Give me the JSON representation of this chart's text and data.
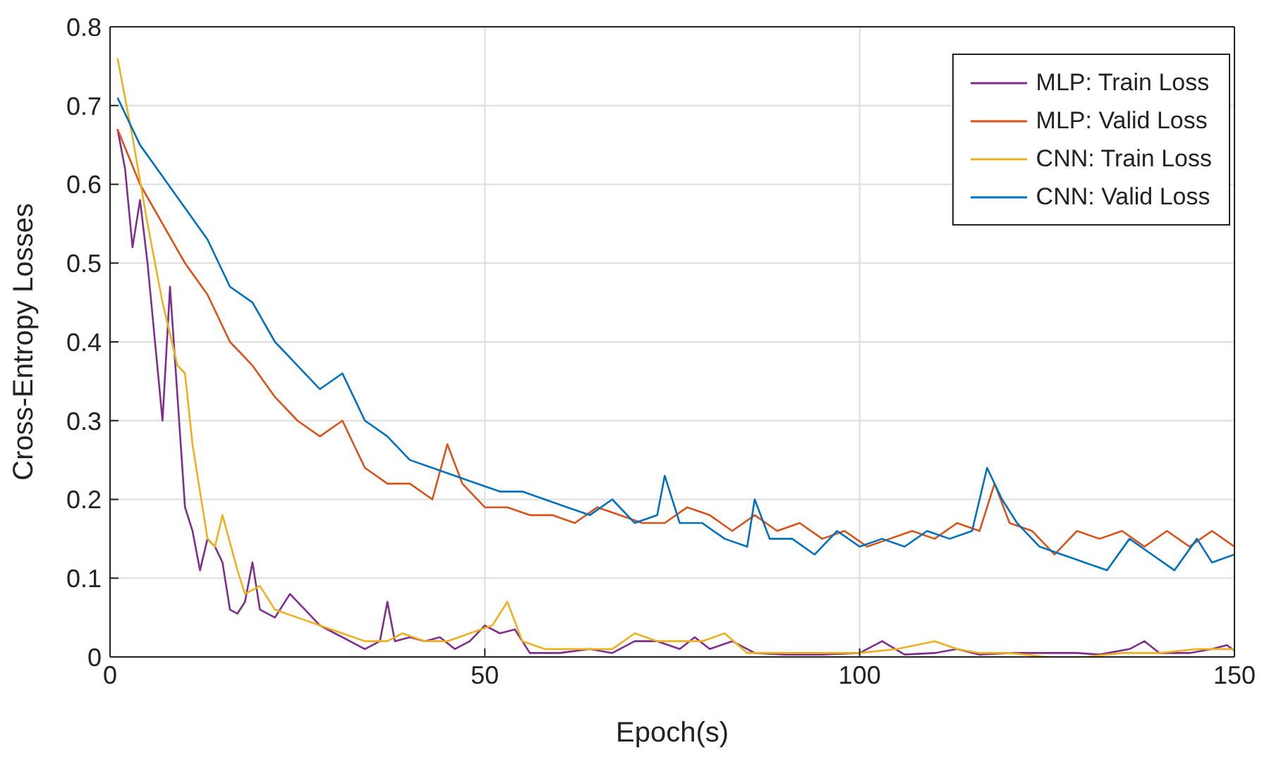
{
  "chart_data": {
    "type": "line",
    "xlabel": "Epoch(s)",
    "ylabel": "Cross-Entropy Losses",
    "xlim": [
      0,
      150
    ],
    "xticks": [
      0,
      50,
      100,
      150
    ],
    "ylim": [
      0,
      0.8
    ],
    "yticks": [
      0,
      0.1,
      0.2,
      0.3,
      0.4,
      0.5,
      0.6,
      0.7,
      0.8
    ],
    "grid": true,
    "legend": "top right",
    "marker": "none",
    "line_style": "solid",
    "series": [
      {
        "name": "MLP: Train Loss",
        "color": "#7e2f8e",
        "x": [
          1,
          2,
          3,
          4,
          5,
          6,
          7,
          8,
          9,
          10,
          11,
          12,
          13,
          14,
          15,
          16,
          17,
          18,
          19,
          20,
          22,
          24,
          26,
          28,
          30,
          32,
          34,
          36,
          37,
          38,
          40,
          42,
          44,
          46,
          48,
          50,
          52,
          54,
          56,
          60,
          64,
          67,
          70,
          73,
          76,
          78,
          80,
          83,
          86,
          90,
          95,
          100,
          103,
          106,
          110,
          113,
          116,
          120,
          125,
          129,
          132,
          136,
          138,
          140,
          144,
          147,
          149,
          150
        ],
        "values": [
          0.67,
          0.62,
          0.52,
          0.58,
          0.5,
          0.4,
          0.3,
          0.47,
          0.33,
          0.19,
          0.16,
          0.11,
          0.15,
          0.14,
          0.12,
          0.06,
          0.055,
          0.07,
          0.12,
          0.06,
          0.05,
          0.08,
          0.06,
          0.04,
          0.03,
          0.02,
          0.01,
          0.02,
          0.07,
          0.02,
          0.025,
          0.02,
          0.025,
          0.01,
          0.02,
          0.04,
          0.03,
          0.035,
          0.005,
          0.005,
          0.01,
          0.005,
          0.02,
          0.02,
          0.01,
          0.025,
          0.01,
          0.02,
          0.005,
          0.003,
          0.003,
          0.005,
          0.02,
          0.003,
          0.005,
          0.01,
          0.003,
          0.005,
          0.005,
          0.005,
          0.003,
          0.01,
          0.02,
          0.005,
          0.005,
          0.01,
          0.015,
          0.008
        ]
      },
      {
        "name": "MLP: Valid Loss",
        "color": "#d95319",
        "x": [
          1,
          4,
          7,
          10,
          13,
          16,
          19,
          22,
          25,
          28,
          31,
          34,
          37,
          40,
          43,
          45,
          47,
          50,
          53,
          56,
          59,
          62,
          65,
          68,
          71,
          74,
          77,
          80,
          83,
          86,
          89,
          92,
          95,
          98,
          101,
          104,
          107,
          110,
          113,
          116,
          118,
          120,
          123,
          126,
          129,
          132,
          135,
          138,
          141,
          144,
          147,
          150
        ],
        "values": [
          0.67,
          0.6,
          0.55,
          0.5,
          0.46,
          0.4,
          0.37,
          0.33,
          0.3,
          0.28,
          0.3,
          0.24,
          0.22,
          0.22,
          0.2,
          0.27,
          0.22,
          0.19,
          0.19,
          0.18,
          0.18,
          0.17,
          0.19,
          0.18,
          0.17,
          0.17,
          0.19,
          0.18,
          0.16,
          0.18,
          0.16,
          0.17,
          0.15,
          0.16,
          0.14,
          0.15,
          0.16,
          0.15,
          0.17,
          0.16,
          0.22,
          0.17,
          0.16,
          0.13,
          0.16,
          0.15,
          0.16,
          0.14,
          0.16,
          0.14,
          0.16,
          0.14
        ]
      },
      {
        "name": "CNN: Train Loss",
        "color": "#edb120",
        "x": [
          1,
          3,
          5,
          7,
          9,
          10,
          11,
          13,
          14,
          15,
          17,
          18,
          20,
          22,
          25,
          28,
          31,
          34,
          37,
          39,
          42,
          45,
          48,
          51,
          53,
          55,
          58,
          61,
          64,
          67,
          70,
          73,
          76,
          79,
          82,
          85,
          90,
          95,
          100,
          105,
          110,
          113,
          116,
          120,
          125,
          130,
          135,
          140,
          145,
          150
        ],
        "values": [
          0.76,
          0.66,
          0.55,
          0.45,
          0.37,
          0.36,
          0.27,
          0.15,
          0.14,
          0.18,
          0.11,
          0.08,
          0.09,
          0.06,
          0.05,
          0.04,
          0.03,
          0.02,
          0.02,
          0.03,
          0.02,
          0.02,
          0.03,
          0.04,
          0.07,
          0.02,
          0.01,
          0.01,
          0.01,
          0.01,
          0.03,
          0.02,
          0.02,
          0.02,
          0.03,
          0.005,
          0.005,
          0.005,
          0.005,
          0.01,
          0.02,
          0.01,
          0.005,
          0.005,
          0,
          0,
          0.005,
          0.005,
          0.01,
          0.01
        ]
      },
      {
        "name": "CNN: Valid Loss",
        "color": "#0072bd",
        "x": [
          1,
          4,
          7,
          10,
          13,
          16,
          19,
          22,
          25,
          28,
          31,
          34,
          37,
          40,
          43,
          46,
          49,
          52,
          55,
          58,
          61,
          64,
          67,
          70,
          73,
          74,
          76,
          79,
          82,
          85,
          86,
          88,
          91,
          94,
          97,
          100,
          103,
          106,
          109,
          112,
          115,
          117,
          119,
          121,
          124,
          127,
          130,
          133,
          136,
          139,
          142,
          145,
          147,
          150
        ],
        "values": [
          0.71,
          0.65,
          0.61,
          0.57,
          0.53,
          0.47,
          0.45,
          0.4,
          0.37,
          0.34,
          0.36,
          0.3,
          0.28,
          0.25,
          0.24,
          0.23,
          0.22,
          0.21,
          0.21,
          0.2,
          0.19,
          0.18,
          0.2,
          0.17,
          0.18,
          0.23,
          0.17,
          0.17,
          0.15,
          0.14,
          0.2,
          0.15,
          0.15,
          0.13,
          0.16,
          0.14,
          0.15,
          0.14,
          0.16,
          0.15,
          0.16,
          0.24,
          0.2,
          0.17,
          0.14,
          0.13,
          0.12,
          0.11,
          0.15,
          0.13,
          0.11,
          0.15,
          0.12,
          0.13
        ]
      }
    ]
  }
}
